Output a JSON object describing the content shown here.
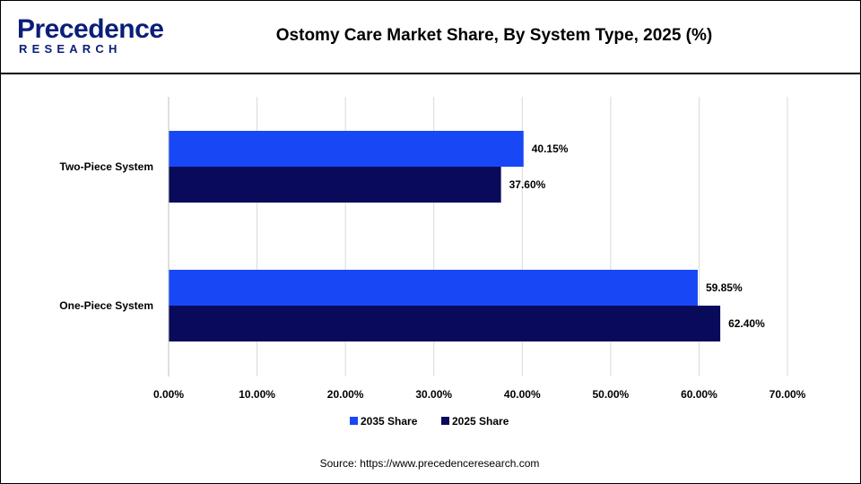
{
  "header": {
    "logo_main": "Precedence",
    "logo_sub": "RESEARCH",
    "title": "Ostomy Care Market Share, By System Type, 2025 (%)"
  },
  "footer": {
    "source": "Source: https://www.precedenceresearch.com"
  },
  "colors": {
    "series_2035": "#1847f5",
    "series_2025": "#0a0a5a",
    "grid": "#d9d9d9",
    "brand": "#0a1e78"
  },
  "chart_data": {
    "type": "bar",
    "orientation": "horizontal",
    "categories": [
      "Two-Piece System",
      "One-Piece System"
    ],
    "series": [
      {
        "name": "2035 Share",
        "values": [
          40.15,
          59.85
        ],
        "labels": [
          "40.15%",
          "59.85%"
        ]
      },
      {
        "name": "2025 Share",
        "values": [
          37.6,
          62.4
        ],
        "labels": [
          "37.60%",
          "62.40%"
        ]
      }
    ],
    "xlim": [
      0,
      70
    ],
    "xticks": [
      "0.00%",
      "10.00%",
      "20.00%",
      "30.00%",
      "40.00%",
      "50.00%",
      "60.00%",
      "70.00%"
    ],
    "grid": true,
    "legend_position": "bottom"
  }
}
